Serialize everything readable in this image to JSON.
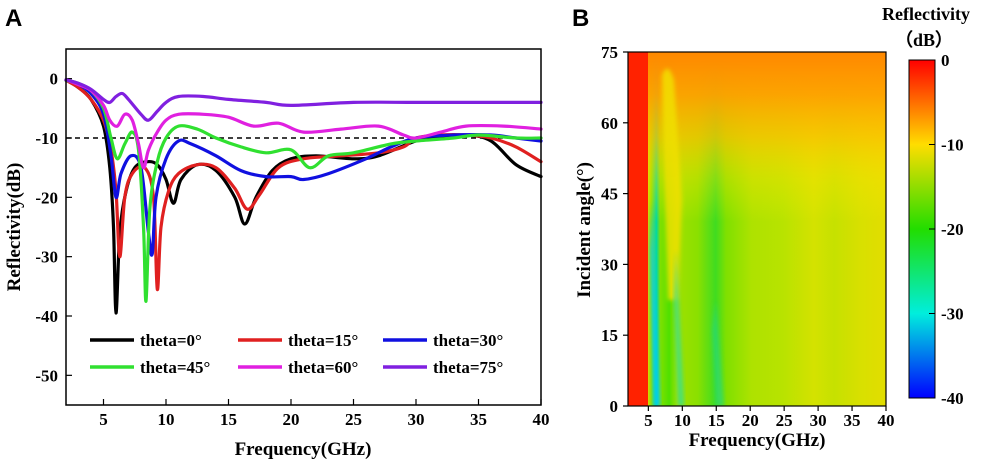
{
  "chart_data": [
    {
      "type": "line",
      "panel_label": "A",
      "xlabel": "Frequency(GHz)",
      "ylabel": "Reflectivity(dB)",
      "xlim": [
        2,
        40
      ],
      "ylim": [
        -55,
        5
      ],
      "xticks": [
        5,
        10,
        15,
        20,
        25,
        30,
        35,
        40
      ],
      "yticks": [
        0,
        -10,
        -20,
        -30,
        -40,
        -50
      ],
      "reference_line": {
        "y": -10,
        "style": "dashed",
        "color": "#000000"
      },
      "legend_position": "bottom-center",
      "series": [
        {
          "name": "theta=0°",
          "color": "#000000",
          "points": [
            [
              2,
              -0.2
            ],
            [
              3,
              -1.5
            ],
            [
              4,
              -3.5
            ],
            [
              5,
              -8
            ],
            [
              5.5,
              -15
            ],
            [
              5.8,
              -25
            ],
            [
              6,
              -39.5
            ],
            [
              6.3,
              -26
            ],
            [
              6.8,
              -19
            ],
            [
              7.5,
              -15
            ],
            [
              8.5,
              -14
            ],
            [
              9.3,
              -14.5
            ],
            [
              10,
              -17
            ],
            [
              10.6,
              -21
            ],
            [
              11.2,
              -17
            ],
            [
              12.5,
              -14.5
            ],
            [
              14,
              -15.5
            ],
            [
              15.5,
              -20
            ],
            [
              16.3,
              -24.5
            ],
            [
              17.2,
              -20
            ],
            [
              18.5,
              -15.5
            ],
            [
              20,
              -13.5
            ],
            [
              22,
              -13
            ],
            [
              25,
              -13.5
            ],
            [
              27,
              -13
            ],
            [
              30,
              -10.5
            ],
            [
              32,
              -10
            ],
            [
              34,
              -9.5
            ],
            [
              36,
              -10.5
            ],
            [
              38,
              -14.5
            ],
            [
              40,
              -16.5
            ]
          ]
        },
        {
          "name": "theta=15°",
          "color": "#e02020",
          "points": [
            [
              2,
              -0.3
            ],
            [
              3,
              -1.5
            ],
            [
              4,
              -3.5
            ],
            [
              5,
              -7
            ],
            [
              5.6,
              -12
            ],
            [
              6,
              -19
            ],
            [
              6.3,
              -30
            ],
            [
              6.7,
              -20
            ],
            [
              7.3,
              -16
            ],
            [
              8.3,
              -15
            ],
            [
              9,
              -20
            ],
            [
              9.3,
              -35.5
            ],
            [
              9.6,
              -25
            ],
            [
              10.2,
              -19
            ],
            [
              11,
              -16
            ],
            [
              12.5,
              -14.5
            ],
            [
              14,
              -15
            ],
            [
              15.5,
              -18.5
            ],
            [
              16.5,
              -22
            ],
            [
              17.5,
              -19.5
            ],
            [
              19,
              -15
            ],
            [
              21,
              -13.5
            ],
            [
              24,
              -13
            ],
            [
              27,
              -12.5
            ],
            [
              29,
              -11.5
            ],
            [
              30,
              -10
            ],
            [
              32,
              -9.5
            ],
            [
              34,
              -9.5
            ],
            [
              36,
              -10
            ],
            [
              38,
              -11.5
            ],
            [
              40,
              -14
            ]
          ]
        },
        {
          "name": "theta=30°",
          "color": "#1010e0",
          "points": [
            [
              2,
              -0.2
            ],
            [
              3,
              -1
            ],
            [
              4,
              -2.5
            ],
            [
              5,
              -6
            ],
            [
              5.6,
              -13
            ],
            [
              6,
              -20
            ],
            [
              6.4,
              -16
            ],
            [
              7.2,
              -13
            ],
            [
              8,
              -15
            ],
            [
              8.6,
              -26
            ],
            [
              8.9,
              -29.5
            ],
            [
              9.2,
              -20
            ],
            [
              10,
              -13.5
            ],
            [
              11,
              -10.5
            ],
            [
              12,
              -11
            ],
            [
              14,
              -13
            ],
            [
              16,
              -15.5
            ],
            [
              18,
              -16.5
            ],
            [
              20,
              -16.5
            ],
            [
              21,
              -17
            ],
            [
              23,
              -16
            ],
            [
              26,
              -13.5
            ],
            [
              28,
              -11.5
            ],
            [
              30,
              -10
            ],
            [
              33,
              -9.5
            ],
            [
              36,
              -9.5
            ],
            [
              38,
              -10
            ],
            [
              40,
              -10.5
            ]
          ]
        },
        {
          "name": "theta=45°",
          "color": "#30e030",
          "points": [
            [
              2,
              -0.3
            ],
            [
              3,
              -0.8
            ],
            [
              4,
              -2
            ],
            [
              5,
              -5
            ],
            [
              5.6,
              -10
            ],
            [
              6.1,
              -13.5
            ],
            [
              6.7,
              -11
            ],
            [
              7.3,
              -9
            ],
            [
              7.8,
              -12
            ],
            [
              8.2,
              -25
            ],
            [
              8.4,
              -37.5
            ],
            [
              8.7,
              -22
            ],
            [
              9.3,
              -14
            ],
            [
              10,
              -10
            ],
            [
              11,
              -8
            ],
            [
              12.5,
              -8.5
            ],
            [
              14,
              -10
            ],
            [
              16,
              -11.5
            ],
            [
              18,
              -12.5
            ],
            [
              20,
              -12
            ],
            [
              21.5,
              -15
            ],
            [
              23,
              -13
            ],
            [
              25,
              -12.5
            ],
            [
              28,
              -11
            ],
            [
              30,
              -10.5
            ],
            [
              33,
              -10
            ],
            [
              35,
              -9.5
            ],
            [
              38,
              -10
            ],
            [
              40,
              -10
            ]
          ]
        },
        {
          "name": "theta=60°",
          "color": "#e020e0",
          "points": [
            [
              2,
              -0.2
            ],
            [
              3,
              -1
            ],
            [
              4,
              -2
            ],
            [
              5,
              -4.5
            ],
            [
              5.5,
              -7
            ],
            [
              6.1,
              -8
            ],
            [
              6.7,
              -6
            ],
            [
              7.3,
              -7
            ],
            [
              7.8,
              -11
            ],
            [
              8.2,
              -15
            ],
            [
              8.6,
              -12
            ],
            [
              9.3,
              -9
            ],
            [
              10,
              -7
            ],
            [
              11,
              -6
            ],
            [
              13,
              -6
            ],
            [
              15,
              -6.5
            ],
            [
              17,
              -8
            ],
            [
              19,
              -7.5
            ],
            [
              21,
              -9
            ],
            [
              24,
              -8.5
            ],
            [
              27,
              -8
            ],
            [
              29,
              -9.5
            ],
            [
              30,
              -10
            ],
            [
              32,
              -9
            ],
            [
              34,
              -8
            ],
            [
              37,
              -8
            ],
            [
              40,
              -8.5
            ]
          ]
        },
        {
          "name": "theta=75°",
          "color": "#8020e0",
          "points": [
            [
              2,
              -0.2
            ],
            [
              3,
              -0.8
            ],
            [
              4,
              -1.8
            ],
            [
              5,
              -3.5
            ],
            [
              5.5,
              -4
            ],
            [
              6,
              -3
            ],
            [
              6.5,
              -2.5
            ],
            [
              7,
              -3.5
            ],
            [
              8,
              -6
            ],
            [
              8.6,
              -7
            ],
            [
              9.3,
              -5.5
            ],
            [
              10,
              -4
            ],
            [
              11,
              -3
            ],
            [
              13,
              -3
            ],
            [
              15,
              -3.5
            ],
            [
              18,
              -4
            ],
            [
              20,
              -4.5
            ],
            [
              25,
              -4
            ],
            [
              30,
              -4
            ],
            [
              35,
              -4
            ],
            [
              40,
              -4
            ]
          ]
        }
      ]
    },
    {
      "type": "heatmap",
      "panel_label": "B",
      "xlabel": "Frequency(GHz)",
      "ylabel": "Incident angle(°)",
      "xlim": [
        2,
        40
      ],
      "ylim": [
        0,
        75
      ],
      "xticks": [
        5,
        10,
        15,
        20,
        25,
        30,
        35,
        40
      ],
      "yticks": [
        0,
        15,
        30,
        45,
        60,
        75
      ],
      "colorbar": {
        "title_line1": "Reflectivity",
        "title_line2": "（dB）",
        "range": [
          -40,
          0
        ],
        "ticks": [
          0,
          -10,
          -20,
          -30,
          -40
        ],
        "stops": [
          {
            "value": 0,
            "color": "#ff0000"
          },
          {
            "value": -10,
            "color": "#ffdd00"
          },
          {
            "value": -20,
            "color": "#22dd00"
          },
          {
            "value": -30,
            "color": "#00eedd"
          },
          {
            "value": -40,
            "color": "#0000ff"
          }
        ]
      }
    }
  ]
}
